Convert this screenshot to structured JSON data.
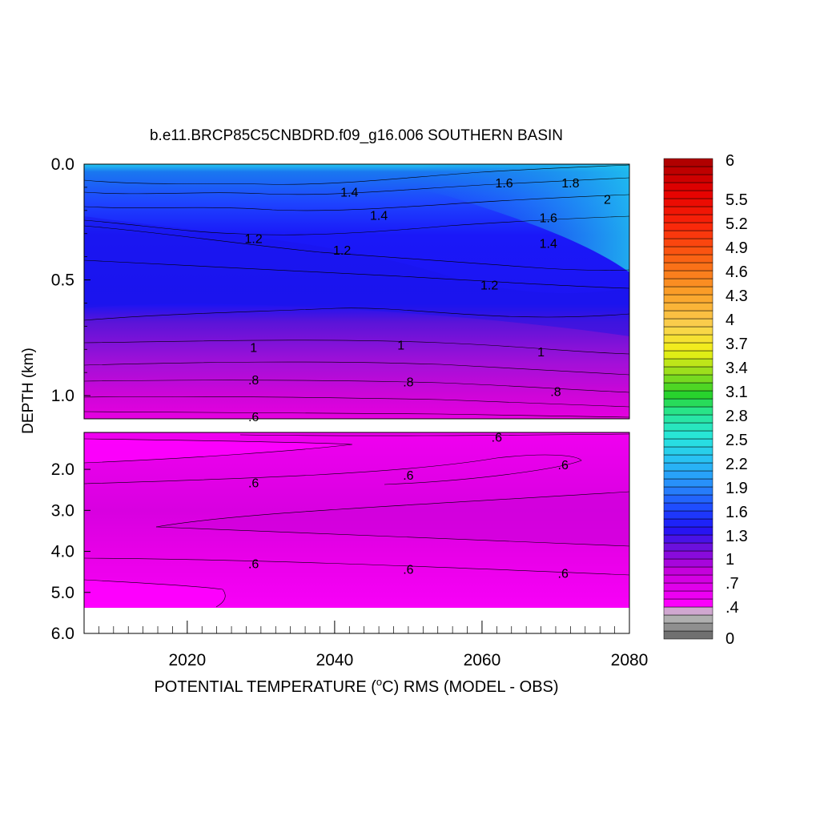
{
  "chart_data": {
    "type": "heatmap",
    "title": "b.e11.BRCP85C5CNBDRD.f09_g16.006 SOUTHERN BASIN",
    "xlabel_pre": "POTENTIAL TEMPERATURE (",
    "xlabel_sup": "o",
    "xlabel_post": "C) RMS (MODEL - OBS)",
    "ylabel": "DEPTH (km)",
    "xlim": [
      2006,
      2080
    ],
    "x_ticks": [
      "2020",
      "2040",
      "2060",
      "2080"
    ],
    "upper_panel": {
      "ylim": [
        0.0,
        1.1
      ],
      "y_ticks": [
        "0.0",
        "0.5",
        "1.0"
      ]
    },
    "lower_panel": {
      "ylim": [
        1.1,
        6.0
      ],
      "y_ticks": [
        "2.0",
        "3.0",
        "4.0",
        "5.0",
        "6.0"
      ]
    },
    "colorbar_labels": [
      "6",
      "5.5",
      "5.2",
      "4.9",
      "4.6",
      "4.3",
      "4",
      "3.7",
      "3.4",
      "3.1",
      "2.8",
      "2.5",
      "2.2",
      "1.9",
      "1.6",
      "1.3",
      "1",
      ".7",
      ".4",
      "0"
    ],
    "contour_labels": [
      {
        "text": "1.6",
        "x": 2063,
        "y": 0.08
      },
      {
        "text": "1.8",
        "x": 2072,
        "y": 0.08
      },
      {
        "text": "2",
        "x": 2077,
        "y": 0.15
      },
      {
        "text": "1.4",
        "x": 2042,
        "y": 0.12
      },
      {
        "text": "1.4",
        "x": 2046,
        "y": 0.22
      },
      {
        "text": "1.6",
        "x": 2069,
        "y": 0.23
      },
      {
        "text": "1.2",
        "x": 2029,
        "y": 0.32
      },
      {
        "text": "1.2",
        "x": 2041,
        "y": 0.37
      },
      {
        "text": "1.4",
        "x": 2069,
        "y": 0.34
      },
      {
        "text": "1.2",
        "x": 2061,
        "y": 0.52
      },
      {
        "text": "1",
        "x": 2029,
        "y": 0.79
      },
      {
        "text": "1",
        "x": 2049,
        "y": 0.78
      },
      {
        "text": "1",
        "x": 2068,
        "y": 0.81
      },
      {
        "text": ".8",
        "x": 2029,
        "y": 0.93
      },
      {
        "text": ".8",
        "x": 2050,
        "y": 0.94
      },
      {
        "text": ".8",
        "x": 2070,
        "y": 0.98
      },
      {
        "text": ".6",
        "x": 2029,
        "y": 1.09
      },
      {
        "text": ".6",
        "x": 2062,
        "y": 1.21
      },
      {
        "text": ".6",
        "x": 2071,
        "y": 1.88
      },
      {
        "text": ".6",
        "x": 2029,
        "y": 2.32
      },
      {
        "text": ".6",
        "x": 2050,
        "y": 2.13
      },
      {
        "text": ".6",
        "x": 2029,
        "y": 4.29
      },
      {
        "text": ".6",
        "x": 2050,
        "y": 4.43
      },
      {
        "text": ".6",
        "x": 2071,
        "y": 4.53
      }
    ]
  }
}
